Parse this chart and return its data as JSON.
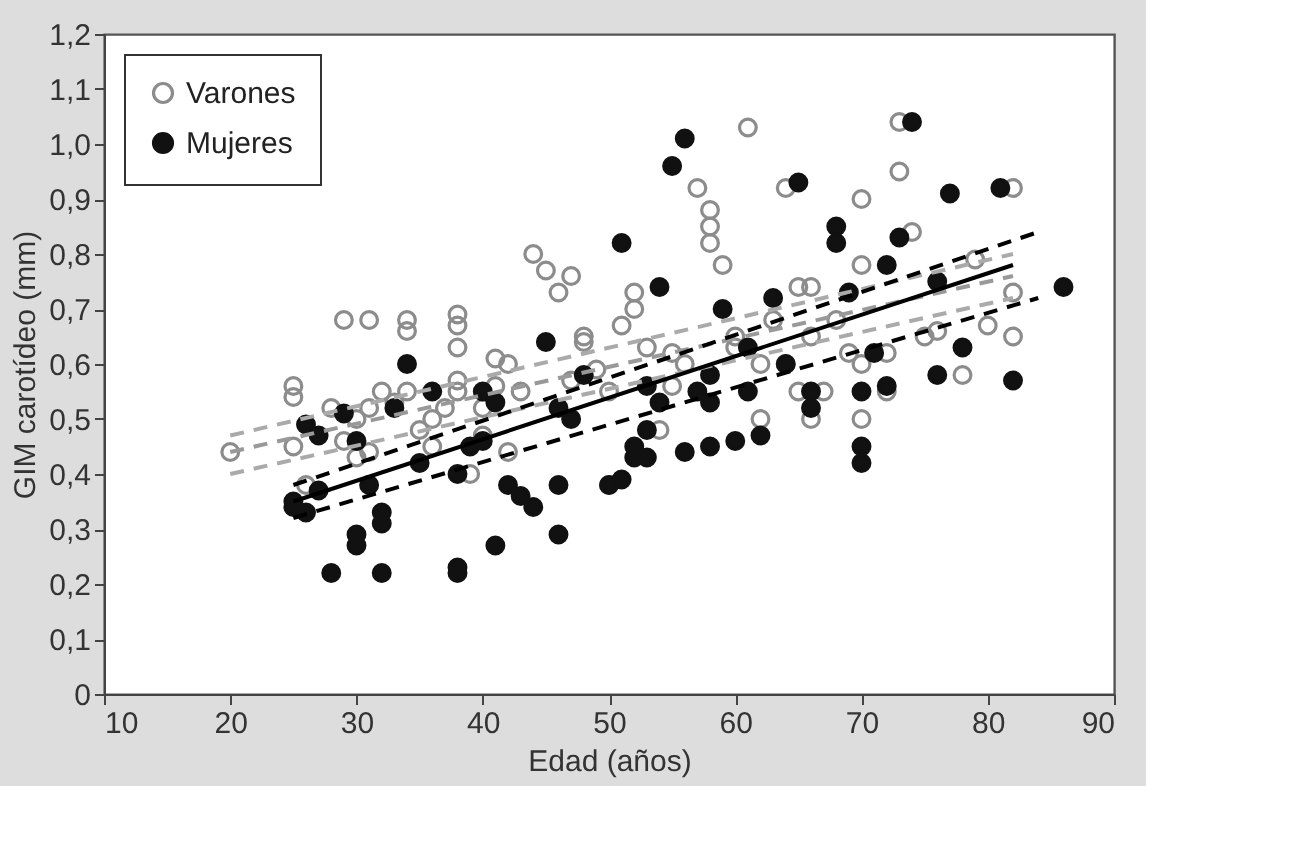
{
  "chart_data": {
    "type": "scatter",
    "xlabel": "Edad (años)",
    "ylabel": "GIM carotídeo (mm)",
    "xlim": [
      10,
      90
    ],
    "xticks": [
      10,
      20,
      30,
      40,
      50,
      60,
      70,
      80,
      90
    ],
    "ylim": [
      0,
      1.2
    ],
    "yticks": [
      {
        "value": 0,
        "label": "0"
      },
      {
        "value": 0.1,
        "label": "0,1"
      },
      {
        "value": 0.2,
        "label": "0,2"
      },
      {
        "value": 0.3,
        "label": "0,3"
      },
      {
        "value": 0.4,
        "label": "0,4"
      },
      {
        "value": 0.5,
        "label": "0,5"
      },
      {
        "value": 0.6,
        "label": "0,6"
      },
      {
        "value": 0.7,
        "label": "0,7"
      },
      {
        "value": 0.8,
        "label": "0,8"
      },
      {
        "value": 0.9,
        "label": "0,9"
      },
      {
        "value": 1.0,
        "label": "1,0"
      },
      {
        "value": 1.1,
        "label": "1,1"
      },
      {
        "value": 1.2,
        "label": "1,2"
      }
    ],
    "grid": false,
    "legend": "top left",
    "series": [
      {
        "name": "Varones",
        "marker": "circle",
        "color": "#8c8c8c",
        "x": [
          20,
          25,
          25,
          25,
          26,
          28,
          29,
          29,
          30,
          30,
          31,
          31,
          31,
          32,
          33,
          34,
          34,
          34,
          35,
          36,
          36,
          37,
          38,
          38,
          38,
          38,
          38,
          39,
          40,
          40,
          41,
          41,
          42,
          42,
          43,
          44,
          45,
          46,
          47,
          47,
          48,
          48,
          49,
          50,
          50,
          51,
          52,
          52,
          53,
          54,
          55,
          55,
          56,
          57,
          58,
          58,
          58,
          59,
          60,
          60,
          61,
          62,
          62,
          63,
          64,
          64,
          65,
          65,
          66,
          66,
          66,
          67,
          68,
          69,
          70,
          70,
          70,
          70,
          72,
          72,
          73,
          73,
          74,
          75,
          76,
          78,
          79,
          80,
          82,
          82,
          82
        ],
        "values": [
          0.44,
          0.56,
          0.54,
          0.45,
          0.38,
          0.52,
          0.68,
          0.46,
          0.5,
          0.43,
          0.68,
          0.52,
          0.44,
          0.55,
          0.53,
          0.55,
          0.66,
          0.68,
          0.48,
          0.5,
          0.45,
          0.52,
          0.69,
          0.67,
          0.63,
          0.57,
          0.55,
          0.4,
          0.47,
          0.52,
          0.56,
          0.61,
          0.44,
          0.6,
          0.55,
          0.8,
          0.77,
          0.73,
          0.76,
          0.57,
          0.64,
          0.65,
          0.59,
          0.55,
          0.38,
          0.67,
          0.73,
          0.7,
          0.63,
          0.48,
          0.56,
          0.62,
          0.6,
          0.92,
          0.88,
          0.85,
          0.82,
          0.78,
          0.65,
          0.63,
          1.03,
          0.6,
          0.5,
          0.68,
          0.92,
          0.6,
          0.74,
          0.55,
          0.74,
          0.65,
          0.5,
          0.55,
          0.68,
          0.62,
          0.9,
          0.78,
          0.6,
          0.5,
          0.55,
          0.62,
          1.04,
          0.95,
          0.84,
          0.65,
          0.66,
          0.58,
          0.79,
          0.67,
          0.92,
          0.73,
          0.65
        ]
      },
      {
        "name": "Mujeres",
        "marker": "circle",
        "color": "#111111",
        "x": [
          25,
          25,
          26,
          26,
          27,
          27,
          28,
          29,
          30,
          30,
          30,
          31,
          32,
          32,
          32,
          33,
          34,
          35,
          36,
          38,
          38,
          38,
          39,
          40,
          40,
          41,
          41,
          42,
          43,
          44,
          45,
          46,
          46,
          46,
          47,
          48,
          50,
          51,
          51,
          52,
          52,
          53,
          53,
          53,
          54,
          54,
          55,
          56,
          56,
          57,
          58,
          58,
          58,
          59,
          60,
          61,
          61,
          62,
          63,
          64,
          65,
          66,
          66,
          68,
          68,
          69,
          70,
          70,
          70,
          71,
          72,
          72,
          73,
          74,
          76,
          76,
          77,
          78,
          81,
          82,
          86
        ],
        "values": [
          0.34,
          0.35,
          0.33,
          0.49,
          0.37,
          0.47,
          0.22,
          0.51,
          0.27,
          0.29,
          0.46,
          0.38,
          0.22,
          0.31,
          0.33,
          0.52,
          0.6,
          0.42,
          0.55,
          0.23,
          0.22,
          0.4,
          0.45,
          0.46,
          0.55,
          0.27,
          0.53,
          0.38,
          0.36,
          0.34,
          0.64,
          0.29,
          0.38,
          0.52,
          0.5,
          0.58,
          0.38,
          0.82,
          0.39,
          0.43,
          0.45,
          0.43,
          0.56,
          0.48,
          0.53,
          0.74,
          0.96,
          1.01,
          0.44,
          0.55,
          0.58,
          0.53,
          0.45,
          0.7,
          0.46,
          0.55,
          0.63,
          0.47,
          0.72,
          0.6,
          0.93,
          0.55,
          0.52,
          0.85,
          0.82,
          0.73,
          0.55,
          0.45,
          0.42,
          0.62,
          0.78,
          0.56,
          0.83,
          1.04,
          0.75,
          0.58,
          0.91,
          0.63,
          0.92,
          0.57,
          0.74
        ]
      },
      {
        "type": "line",
        "marker": "none",
        "line_style": "dashed",
        "color": "#999999",
        "x": [
          20,
          82
        ],
        "values": [
          0.44,
          0.76
        ]
      },
      {
        "type": "line",
        "marker": "none",
        "line_style": "dashed",
        "color": "#aaaaaa",
        "x": [
          20,
          82
        ],
        "values": [
          0.47,
          0.8
        ]
      },
      {
        "type": "line",
        "marker": "none",
        "line_style": "dashed",
        "color": "#aaaaaa",
        "x": [
          20,
          82
        ],
        "values": [
          0.4,
          0.72
        ]
      },
      {
        "type": "line",
        "marker": "none",
        "line_style": "solid",
        "color": "#000000",
        "x": [
          25,
          82
        ],
        "values": [
          0.35,
          0.78
        ]
      },
      {
        "type": "line",
        "marker": "none",
        "line_style": "dashed",
        "color": "#000000",
        "x": [
          25,
          84
        ],
        "values": [
          0.38,
          0.84
        ]
      },
      {
        "type": "line",
        "marker": "none",
        "line_style": "dashed",
        "color": "#000000",
        "x": [
          25,
          84
        ],
        "values": [
          0.32,
          0.72
        ]
      }
    ]
  }
}
